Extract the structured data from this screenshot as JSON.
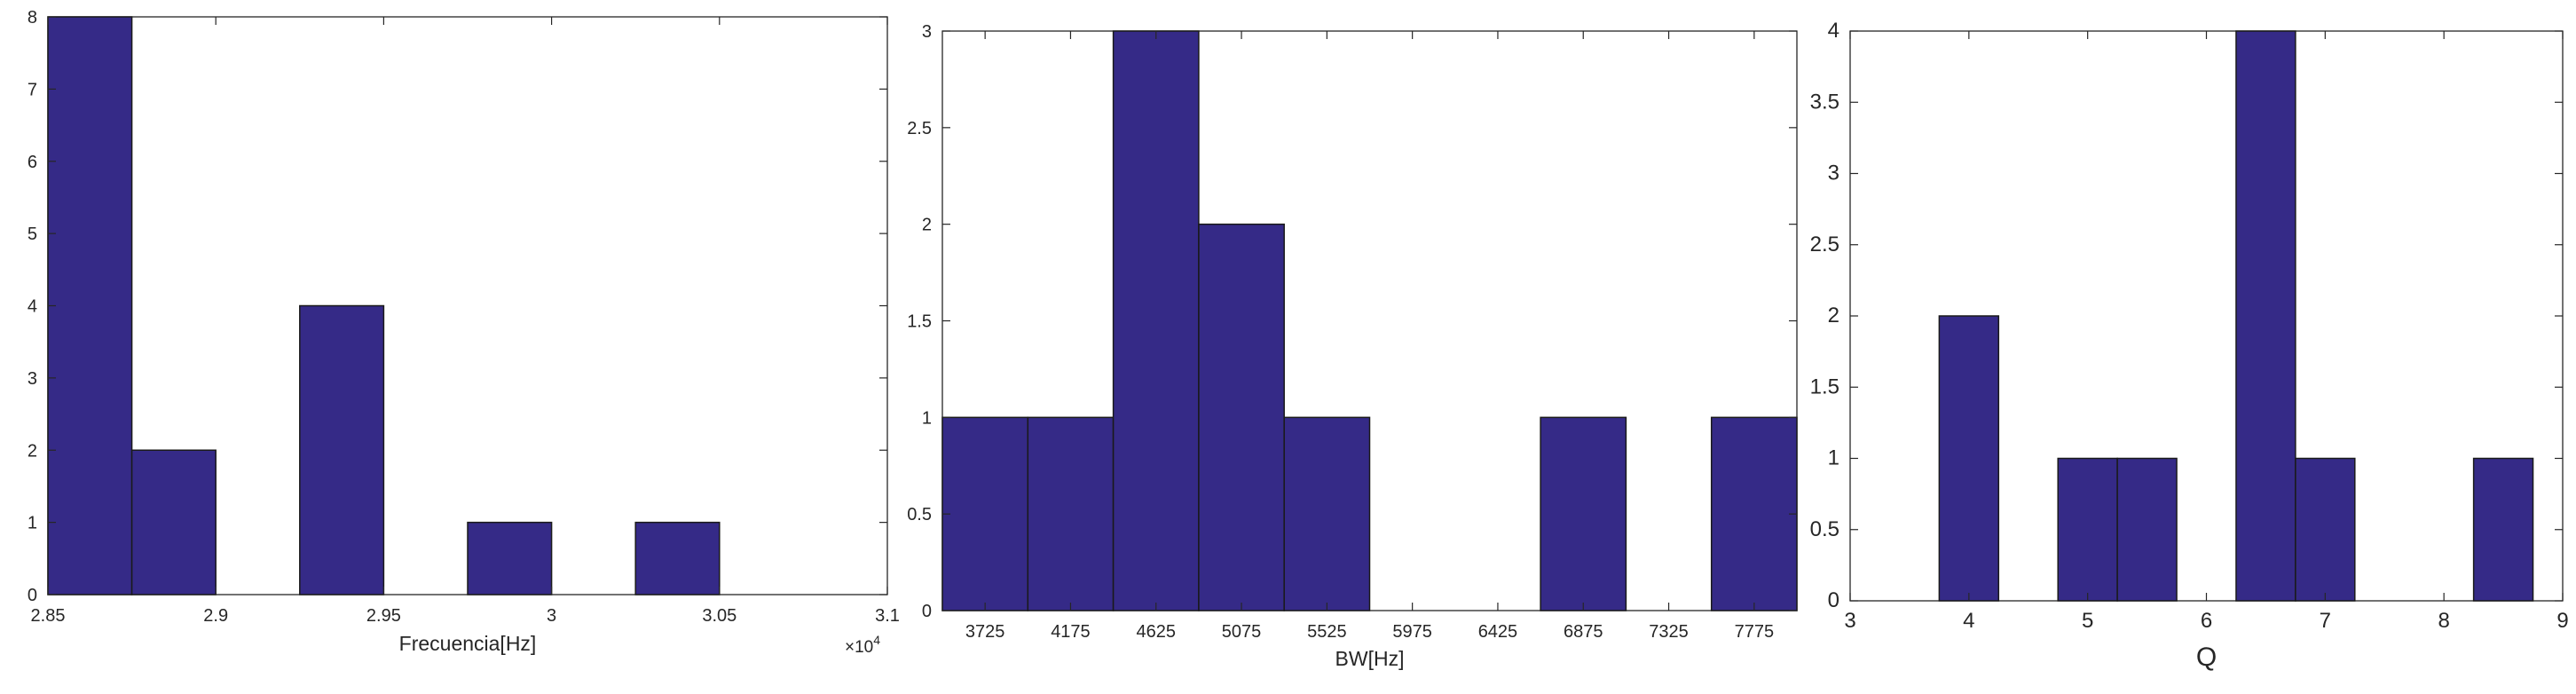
{
  "colors": {
    "bar_fill": "#352A87",
    "bar_edge": "#1A1A1A",
    "axis": "#262626",
    "background": "#FFFFFF"
  },
  "chart_data": [
    {
      "type": "bar",
      "xlabel": "Frecuencia[Hz]",
      "ylabel": "",
      "title": "",
      "xlim": [
        28500,
        31000
      ],
      "ylim": [
        0,
        8
      ],
      "x_exponent_label": "×10",
      "x_exponent_power": "4",
      "x_ticks": [
        28500,
        29000,
        29500,
        30000,
        30500,
        31000
      ],
      "x_tick_labels": [
        "2.85",
        "2.9",
        "2.95",
        "3",
        "3.05",
        "3.1"
      ],
      "y_ticks": [
        0,
        1,
        2,
        3,
        4,
        5,
        6,
        7,
        8
      ],
      "y_tick_labels": [
        "0",
        "1",
        "2",
        "3",
        "4",
        "5",
        "6",
        "7",
        "8"
      ],
      "bin_edges": [
        28500,
        28750,
        29000,
        29250,
        29500,
        29750,
        30000,
        30250,
        30500,
        30750
      ],
      "values": [
        8,
        2,
        0,
        4,
        0,
        1,
        0,
        1,
        0
      ],
      "grid": false
    },
    {
      "type": "bar",
      "xlabel": "BW[Hz]",
      "ylabel": "",
      "title": "",
      "xlim": [
        3500,
        8000
      ],
      "ylim": [
        0,
        3
      ],
      "x_ticks": [
        3725,
        4175,
        4625,
        5075,
        5525,
        5975,
        6425,
        6875,
        7325,
        7775
      ],
      "x_tick_labels": [
        "3725",
        "4175",
        "4625",
        "5075",
        "5525",
        "5975",
        "6425",
        "6875",
        "7325",
        "7775"
      ],
      "y_ticks": [
        0,
        0.5,
        1,
        1.5,
        2,
        2.5,
        3
      ],
      "y_tick_labels": [
        "0",
        "0.5",
        "1",
        "1.5",
        "2",
        "2.5",
        "3"
      ],
      "bin_edges": [
        3500,
        3950,
        4400,
        4850,
        5300,
        5750,
        6200,
        6650,
        7100,
        7550,
        8000
      ],
      "values": [
        1,
        1,
        3,
        2,
        1,
        0,
        0,
        1,
        0,
        1
      ],
      "grid": false
    },
    {
      "type": "bar",
      "xlabel": "Q",
      "ylabel": "",
      "title": "",
      "xlim": [
        3,
        9
      ],
      "ylim": [
        0,
        4
      ],
      "x_ticks": [
        3,
        4,
        5,
        6,
        7,
        8,
        9
      ],
      "x_tick_labels": [
        "3",
        "4",
        "5",
        "6",
        "7",
        "8",
        "9"
      ],
      "y_ticks": [
        0,
        0.5,
        1,
        1.5,
        2,
        2.5,
        3,
        3.5,
        4
      ],
      "y_tick_labels": [
        "0",
        "0.5",
        "1",
        "1.5",
        "2",
        "2.5",
        "3",
        "3.5",
        "4"
      ],
      "bin_edges": [
        3.75,
        4.25,
        4.75,
        5.25,
        5.75,
        6.25,
        6.75,
        7.25,
        7.75,
        8.25,
        8.75
      ],
      "values": [
        2,
        0,
        1,
        1,
        0,
        4,
        1,
        0,
        0,
        1
      ],
      "grid": false
    }
  ]
}
